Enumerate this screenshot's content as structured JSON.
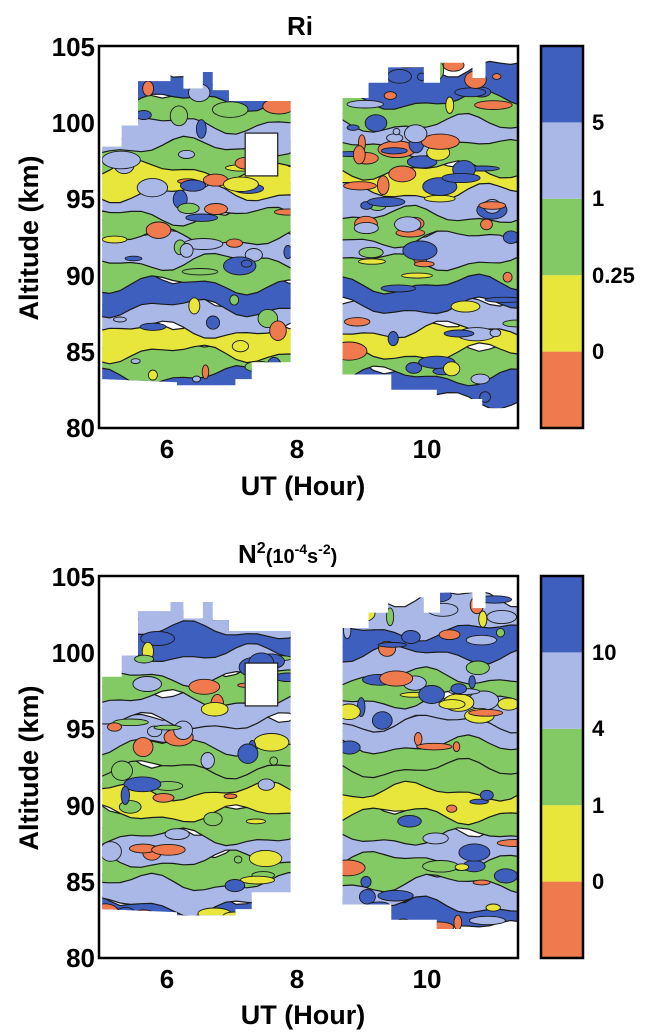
{
  "colors": {
    "darkblue": "#3f5fbf",
    "lightblue": "#a9b8e6",
    "green": "#83c964",
    "yellow": "#e8e63a",
    "red": "#ef7a4e",
    "contour": "#1a1a1a",
    "frame": "#000000"
  },
  "chart_data": [
    {
      "type": "heatmap",
      "title": "Ri",
      "xlabel": "UT (Hour)",
      "ylabel": "Altitude (km)",
      "xlim": [
        5.0,
        11.45
      ],
      "ylim": [
        80,
        105
      ],
      "xticks": [
        "6",
        "8",
        "10"
      ],
      "yticks": [
        "80",
        "85",
        "90",
        "95",
        "100",
        "105"
      ],
      "grid": false,
      "data_gap_ut": [
        8.0,
        8.75
      ],
      "colorbar": {
        "levels": [
          "0",
          "0.25",
          "1",
          "5"
        ],
        "bands_bottom_to_top": [
          "red",
          "yellow",
          "green",
          "lightblue",
          "darkblue"
        ]
      },
      "bands": [
        {
          "alt": 83,
          "color": "darkblue"
        },
        {
          "alt": 84.5,
          "color": "green"
        },
        {
          "alt": 86,
          "color": "yellow"
        },
        {
          "alt": 87.5,
          "color": "lightblue"
        },
        {
          "alt": 89,
          "color": "darkblue"
        },
        {
          "alt": 90.5,
          "color": "green"
        },
        {
          "alt": 92,
          "color": "lightblue"
        },
        {
          "alt": 93.5,
          "color": "green"
        },
        {
          "alt": 95,
          "color": "lightblue"
        },
        {
          "alt": 96.5,
          "color": "yellow"
        },
        {
          "alt": 98,
          "color": "green"
        },
        {
          "alt": 99.5,
          "color": "lightblue"
        },
        {
          "alt": 101,
          "color": "green"
        },
        {
          "alt": 102.5,
          "color": "darkblue"
        }
      ]
    },
    {
      "type": "heatmap",
      "title_main": "N",
      "title_sup1": "2",
      "title_rest": "(10",
      "title_sup2": "-4",
      "title_s": "s",
      "title_sup3": "-2",
      "title_close": ")",
      "xlabel": "UT (Hour)",
      "ylabel": "Altitude (km)",
      "xlim": [
        5.0,
        11.45
      ],
      "ylim": [
        80,
        105
      ],
      "xticks": [
        "6",
        "8",
        "10"
      ],
      "yticks": [
        "80",
        "85",
        "90",
        "95",
        "100",
        "105"
      ],
      "grid": false,
      "data_gap_ut": [
        8.0,
        8.75
      ],
      "colorbar": {
        "levels": [
          "0",
          "1",
          "4",
          "10"
        ],
        "bands_bottom_to_top": [
          "red",
          "yellow",
          "green",
          "lightblue",
          "darkblue"
        ]
      },
      "bands": [
        {
          "alt": 83,
          "color": "darkblue"
        },
        {
          "alt": 84.5,
          "color": "lightblue"
        },
        {
          "alt": 86,
          "color": "green"
        },
        {
          "alt": 87.5,
          "color": "lightblue"
        },
        {
          "alt": 89,
          "color": "green"
        },
        {
          "alt": 90.5,
          "color": "yellow"
        },
        {
          "alt": 92,
          "color": "green"
        },
        {
          "alt": 93.5,
          "color": "green"
        },
        {
          "alt": 95,
          "color": "lightblue"
        },
        {
          "alt": 96.5,
          "color": "lightblue"
        },
        {
          "alt": 98,
          "color": "green"
        },
        {
          "alt": 99.5,
          "color": "lightblue"
        },
        {
          "alt": 101,
          "color": "darkblue"
        },
        {
          "alt": 102.5,
          "color": "lightblue"
        }
      ]
    }
  ]
}
